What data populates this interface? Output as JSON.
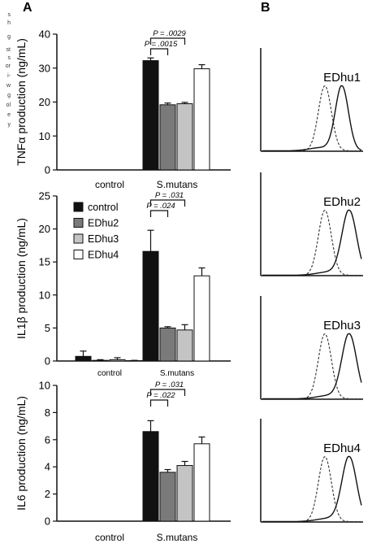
{
  "panel_labels": {
    "a": "A",
    "b": "B"
  },
  "margin_fragments": [
    "s",
    "h",
    "g",
    "st",
    "s",
    "or",
    "i-",
    "w",
    "g",
    "ol",
    "e",
    "y"
  ],
  "colors": {
    "control": "#111111",
    "EDhu2": "#7a7a7a",
    "EDhu3": "#c4c4c4",
    "EDhu4": "#ffffff"
  },
  "legend": {
    "entries": [
      {
        "label": "control",
        "color": "#111111"
      },
      {
        "label": "EDhu2",
        "color": "#7a7a7a"
      },
      {
        "label": "EDhu3",
        "color": "#c4c4c4"
      },
      {
        "label": "EDhu4",
        "color": "#ffffff"
      }
    ]
  },
  "chart_data": [
    {
      "type": "bar",
      "ylabel": "TNFα production (ng/mL)",
      "categories": [
        "control",
        "S.mutans"
      ],
      "ylim": [
        0,
        40
      ],
      "yticks": [
        0,
        10,
        20,
        30,
        40
      ],
      "series": [
        {
          "name": "control",
          "values": [
            0,
            32.2
          ],
          "errors": [
            0,
            0.8
          ]
        },
        {
          "name": "EDhu2",
          "values": [
            0,
            19.2
          ],
          "errors": [
            0,
            0.5
          ]
        },
        {
          "name": "EDhu3",
          "values": [
            0,
            19.5
          ],
          "errors": [
            0,
            0.4
          ]
        },
        {
          "name": "EDhu4",
          "values": [
            0,
            29.8
          ],
          "errors": [
            0,
            1.2
          ]
        }
      ],
      "annotations": [
        {
          "text": "P = .0015",
          "from": 0,
          "to": 1
        },
        {
          "text": "P = .0029",
          "from": 0,
          "to": 2
        }
      ]
    },
    {
      "type": "bar",
      "ylabel": "IL1β production (ng/mL)",
      "categories": [
        "control",
        "S.mutans"
      ],
      "ylim": [
        0,
        25
      ],
      "yticks": [
        0,
        5,
        10,
        15,
        20,
        25
      ],
      "series": [
        {
          "name": "control",
          "values": [
            0.7,
            16.6
          ],
          "errors": [
            0.8,
            3.2
          ]
        },
        {
          "name": "EDhu2",
          "values": [
            0.1,
            5.0
          ],
          "errors": [
            0.1,
            0.2
          ]
        },
        {
          "name": "EDhu3",
          "values": [
            0.2,
            4.7
          ],
          "errors": [
            0.3,
            0.8
          ]
        },
        {
          "name": "EDhu4",
          "values": [
            0.05,
            12.9
          ],
          "errors": [
            0.05,
            1.2
          ]
        }
      ],
      "annotations": [
        {
          "text": "P = .024",
          "from": 0,
          "to": 1
        },
        {
          "text": "P = .031",
          "from": 0,
          "to": 2
        }
      ]
    },
    {
      "type": "bar",
      "ylabel": "IL6 production (ng/mL)",
      "categories": [
        "control",
        "S.mutans"
      ],
      "ylim": [
        0,
        10
      ],
      "yticks": [
        0,
        2,
        4,
        6,
        8,
        10
      ],
      "series": [
        {
          "name": "control",
          "values": [
            0,
            6.6
          ],
          "errors": [
            0,
            0.8
          ]
        },
        {
          "name": "EDhu2",
          "values": [
            0,
            3.6
          ],
          "errors": [
            0,
            0.2
          ]
        },
        {
          "name": "EDhu3",
          "values": [
            0,
            4.1
          ],
          "errors": [
            0,
            0.3
          ]
        },
        {
          "name": "EDhu4",
          "values": [
            0,
            5.7
          ],
          "errors": [
            0,
            0.5
          ]
        }
      ],
      "annotations": [
        {
          "text": "P = .022",
          "from": 0,
          "to": 1
        },
        {
          "text": "P = .031",
          "from": 0,
          "to": 2
        }
      ]
    },
    {
      "type": "line",
      "title": "EDhu1"
    },
    {
      "type": "line",
      "title": "EDhu2"
    },
    {
      "type": "line",
      "title": "EDhu3"
    },
    {
      "type": "line",
      "title": "EDhu4"
    }
  ]
}
